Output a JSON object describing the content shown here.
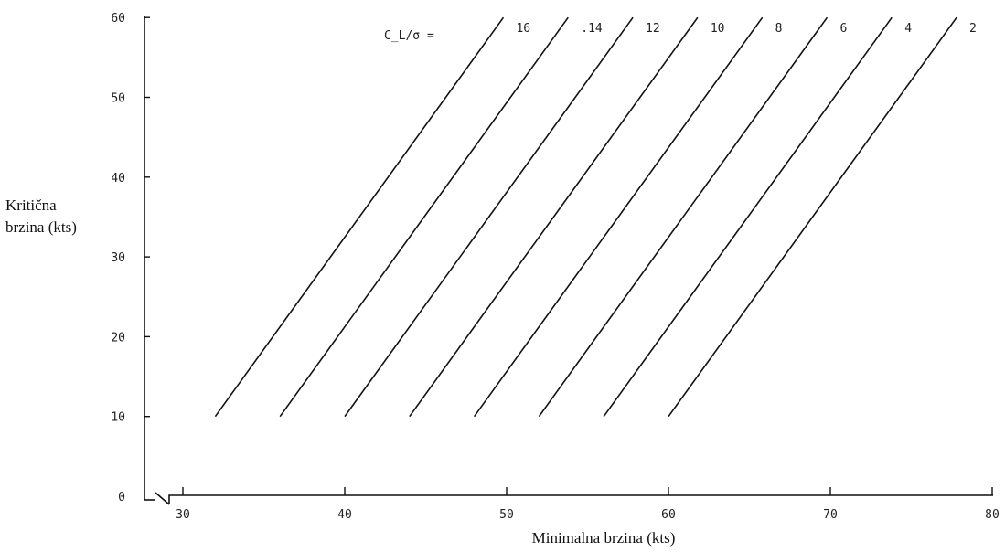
{
  "chart_data": {
    "type": "line",
    "legend_prefix": "C_L/σ =",
    "xlabel": "Minimalna brzina (kts)",
    "ylabel_line1": "Kritična",
    "ylabel_line2": "brzina (kts)",
    "xlim": [
      30,
      80
    ],
    "ylim": [
      0,
      60
    ],
    "xticks": [
      "30",
      "40",
      "50",
      "60",
      "70",
      "80"
    ],
    "yticks": [
      "0",
      "10",
      "20",
      "30",
      "40",
      "50",
      "60"
    ],
    "axis_break": true,
    "grid": false,
    "legend_placement": "top, along line ends",
    "series": [
      {
        "name": "16",
        "x": [
          32,
          49.8
        ],
        "y": [
          10,
          60
        ]
      },
      {
        "name": ".14",
        "x": [
          36,
          53.8
        ],
        "y": [
          10,
          60
        ]
      },
      {
        "name": "12",
        "x": [
          40,
          57.8
        ],
        "y": [
          10,
          60
        ]
      },
      {
        "name": "10",
        "x": [
          44,
          61.8
        ],
        "y": [
          10,
          60
        ]
      },
      {
        "name": "8",
        "x": [
          48,
          65.8
        ],
        "y": [
          10,
          60
        ]
      },
      {
        "name": "6",
        "x": [
          52,
          69.8
        ],
        "y": [
          10,
          60
        ]
      },
      {
        "name": "4",
        "x": [
          56,
          73.8
        ],
        "y": [
          10,
          60
        ]
      },
      {
        "name": "2",
        "x": [
          60,
          77.8
        ],
        "y": [
          10,
          60
        ]
      }
    ]
  }
}
